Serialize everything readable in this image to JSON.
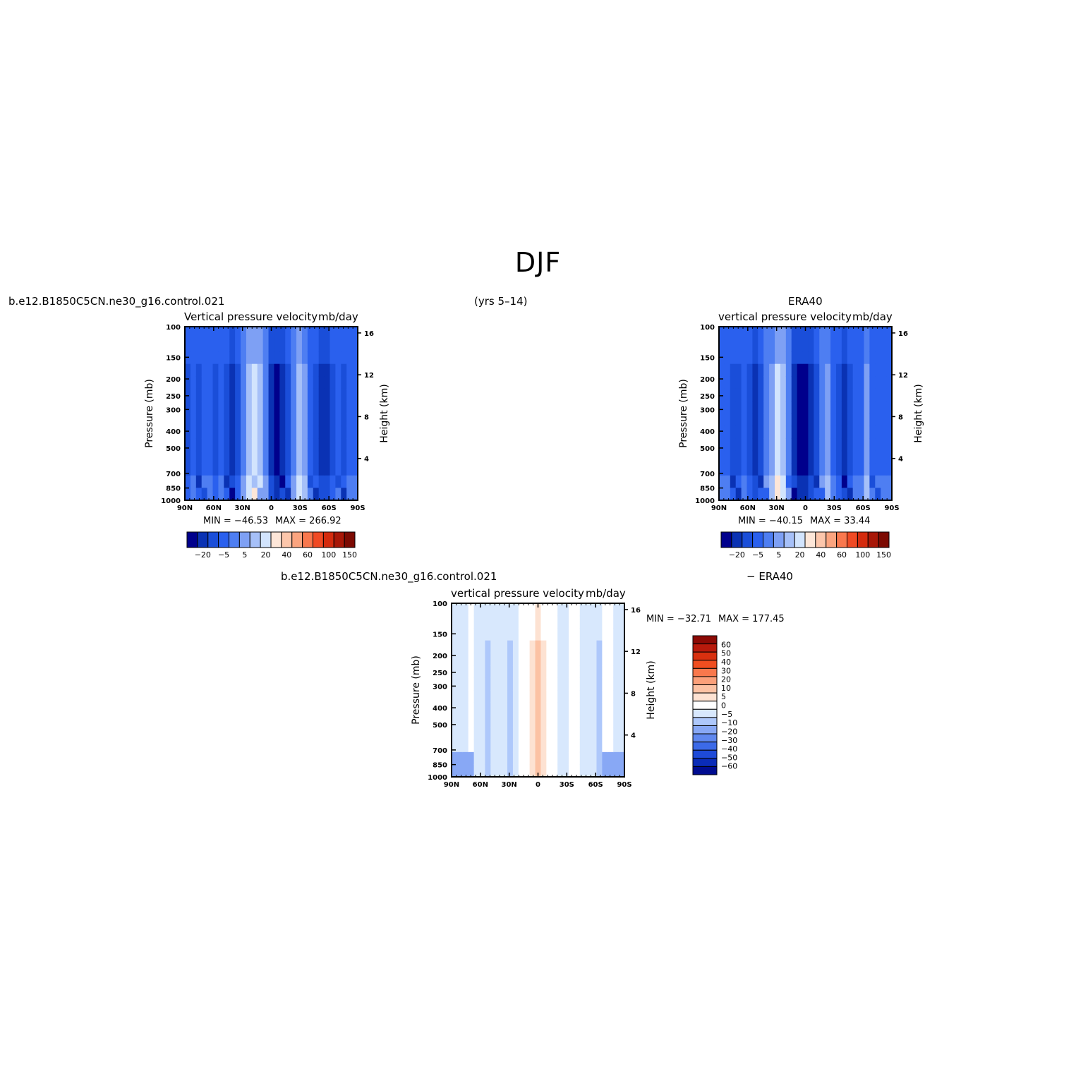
{
  "figure": {
    "title": "DJF",
    "years": "(yrs 5–14)"
  },
  "chart_data": [
    {
      "type": "heatmap",
      "panel": "model",
      "case_label": "b.e12.B1850C5CN.ne30_g16.control.021",
      "title": "Vertical pressure velocity",
      "units": "mb/day",
      "ylabel": "Pressure (mb)",
      "ylabel_right": "Height (km)",
      "x_ticks": [
        "90N",
        "60N",
        "30N",
        "0",
        "30S",
        "60S",
        "90S"
      ],
      "y_ticks": [
        "100",
        "150",
        "200",
        "250",
        "300",
        "400",
        "500",
        "700",
        "850",
        "1000"
      ],
      "y_right_ticks": [
        "16",
        "12",
        "8",
        "4"
      ],
      "ylim": [
        1000,
        100
      ],
      "min_label": "MIN = −46.53",
      "max_label": "MAX = 266.92",
      "colorbar_labels": [
        "−20",
        "−5",
        "5",
        "20",
        "40",
        "60",
        "100",
        "150"
      ],
      "colorbar_colors": [
        "#00008c",
        "#0a32b4",
        "#1a4ed9",
        "#2a60ee",
        "#4e7ef2",
        "#7ea0f4",
        "#a6c0f8",
        "#d2e4fd",
        "#fde6d8",
        "#fcc6ab",
        "#fba47f",
        "#f9784e",
        "#f04a24",
        "#d42b0e",
        "#a81707",
        "#7c0a02"
      ]
    },
    {
      "type": "heatmap",
      "panel": "obs",
      "case_label": "ERA40",
      "title": "vertical pressure velocity",
      "units": "mb/day",
      "ylabel": "Pressure (mb)",
      "ylabel_right": "Height (km)",
      "x_ticks": [
        "90N",
        "60N",
        "30N",
        "0",
        "30S",
        "60S",
        "90S"
      ],
      "y_ticks": [
        "100",
        "150",
        "200",
        "250",
        "300",
        "400",
        "500",
        "700",
        "850",
        "1000"
      ],
      "y_right_ticks": [
        "16",
        "12",
        "8",
        "4"
      ],
      "ylim": [
        1000,
        100
      ],
      "min_label": "MIN = −40.15",
      "max_label": "MAX =  33.44",
      "colorbar_labels": [
        "−20",
        "−5",
        "5",
        "20",
        "40",
        "60",
        "100",
        "150"
      ]
    },
    {
      "type": "heatmap",
      "panel": "diff",
      "case_label": "b.e12.B1850C5CN.ne30_g16.control.021",
      "case_label_right": "− ERA40",
      "title": "vertical pressure velocity",
      "units": "mb/day",
      "ylabel": "Pressure (mb)",
      "ylabel_right": "Height (km)",
      "x_ticks": [
        "90N",
        "60N",
        "30N",
        "0",
        "30S",
        "60S",
        "90S"
      ],
      "y_ticks": [
        "100",
        "150",
        "200",
        "250",
        "300",
        "400",
        "500",
        "700",
        "850",
        "1000"
      ],
      "y_right_ticks": [
        "16",
        "12",
        "8",
        "4"
      ],
      "ylim": [
        1000,
        100
      ],
      "min_label": "MIN = −32.71",
      "max_label": "MAX = 177.45",
      "colorbar_labels": [
        "60",
        "50",
        "40",
        "30",
        "20",
        "10",
        "5",
        "0",
        "−5",
        "−10",
        "−20",
        "−30",
        "−40",
        "−50",
        "−60"
      ],
      "colorbar_colors": [
        "#8c0a05",
        "#b81a0c",
        "#d8300f",
        "#f04e20",
        "#f9784c",
        "#fba07a",
        "#fcc2a4",
        "#fde2d2",
        "#ffffff",
        "#d8e8fd",
        "#aec8fb",
        "#88a8f5",
        "#6088ef",
        "#3c6ae8",
        "#1e4ad8",
        "#0a2cb8",
        "#000c90"
      ]
    }
  ]
}
